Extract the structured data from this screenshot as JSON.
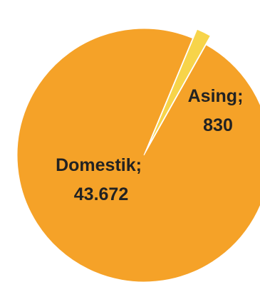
{
  "chart_data": {
    "type": "pie",
    "slices": [
      {
        "category": "Domestik",
        "value": 43672,
        "value_label": "43.672",
        "color": "#F5A228"
      },
      {
        "category": "Asing",
        "value": 830,
        "value_label": "830",
        "color": "#F7D44A"
      }
    ],
    "separator": ";",
    "small_slice_exploded": true,
    "labels": [
      {
        "line1": "Domestik;",
        "line2": "43.672"
      },
      {
        "line1": "Asing;",
        "line2": "830"
      }
    ]
  }
}
